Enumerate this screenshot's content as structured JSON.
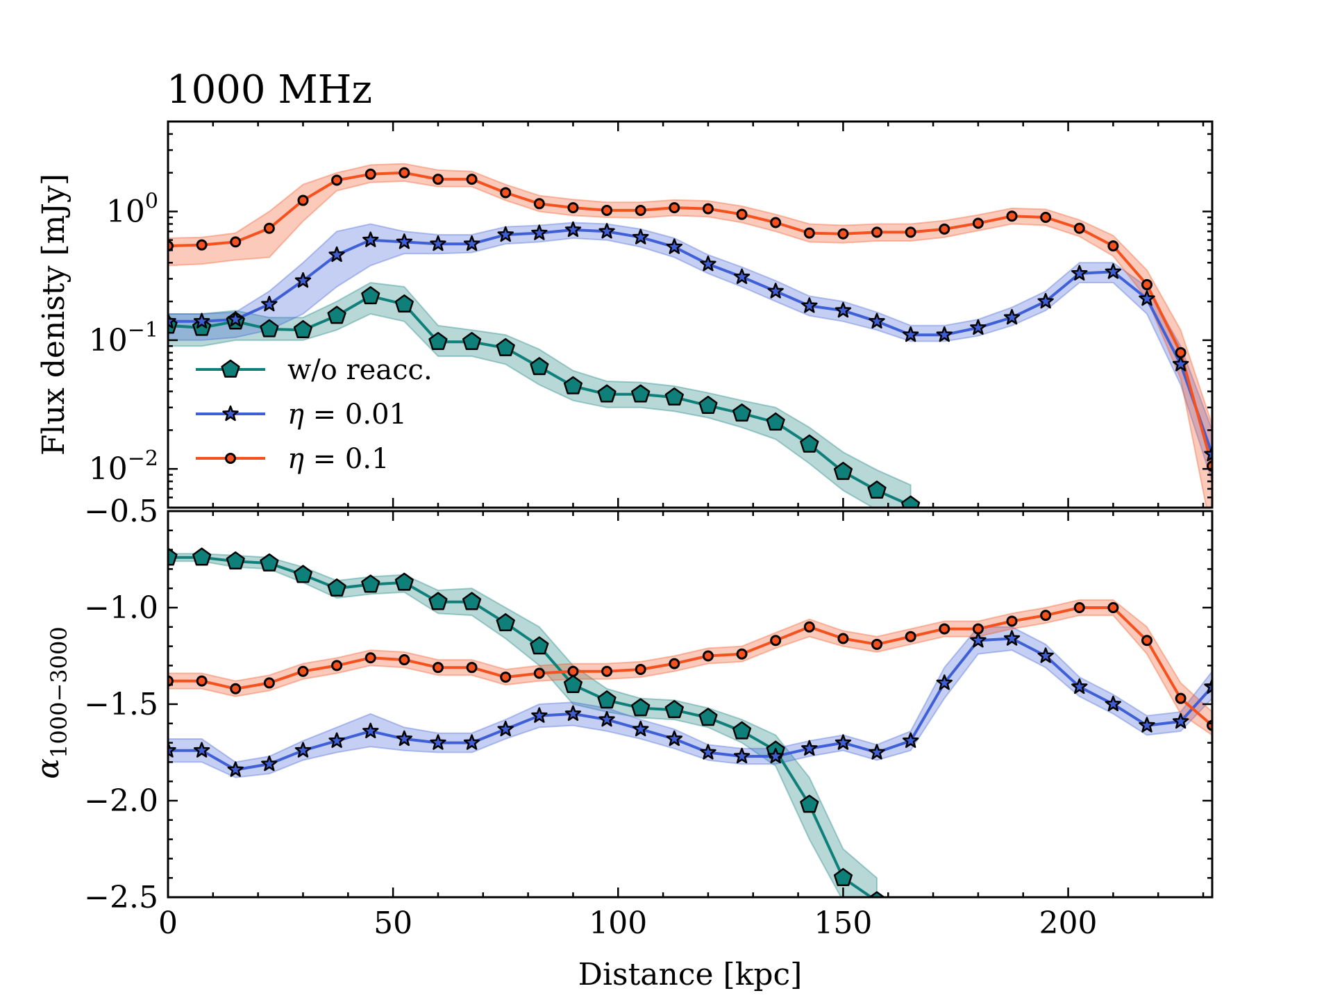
{
  "chart_data": [
    {
      "type": "line",
      "panel": "top",
      "title": "1000 MHz",
      "ylabel": "Flux denisty [mJy]",
      "yscale": "log",
      "ylim": [
        0.005,
        5
      ],
      "xlim": [
        0,
        232
      ],
      "yticks": [
        {
          "value": 1,
          "base": "10",
          "exp": "0"
        },
        {
          "value": 0.1,
          "base": "10",
          "exp": "−1"
        },
        {
          "value": 0.01,
          "base": "10",
          "exp": "−2"
        }
      ],
      "legend": {
        "placement": "lower-left",
        "entries": [
          {
            "key": "w/o",
            "label_prefix": "w/o reacc.",
            "label_suffix": ""
          },
          {
            "key": "eta001",
            "label_prefix": "η",
            "label_suffix": " = 0.01"
          },
          {
            "key": "eta01",
            "label_prefix": "η",
            "label_suffix": " = 0.1"
          }
        ]
      },
      "x": [
        0,
        7.5,
        15,
        22.5,
        30,
        37.5,
        45,
        52.5,
        60,
        67.5,
        75,
        82.5,
        90,
        97.5,
        105,
        112.5,
        120,
        127.5,
        135,
        142.5,
        150,
        157.5,
        165,
        172.5,
        180,
        187.5,
        195,
        202.5,
        210,
        217.5,
        225,
        232
      ],
      "series": [
        {
          "key": "w/o",
          "name": "w/o reacc.",
          "color": "#0f7f7a",
          "marker": "pentagon",
          "values": [
            0.13,
            0.125,
            0.14,
            0.122,
            0.12,
            0.155,
            0.22,
            0.19,
            0.097,
            0.097,
            0.087,
            0.062,
            0.044,
            0.038,
            0.038,
            0.036,
            0.031,
            0.027,
            0.023,
            0.0155,
            0.0095,
            0.0068,
            0.0052,
            null,
            null,
            null,
            null,
            null,
            null,
            null,
            null,
            null
          ],
          "lower": [
            0.09,
            0.09,
            0.1,
            0.1,
            0.1,
            0.12,
            0.16,
            0.14,
            0.075,
            0.075,
            0.065,
            0.045,
            0.034,
            0.03,
            0.03,
            0.028,
            0.025,
            0.021,
            0.017,
            0.011,
            0.0068,
            0.0048,
            0.0036,
            null,
            null,
            null,
            null,
            null,
            null,
            null,
            null,
            null
          ],
          "upper": [
            0.16,
            0.16,
            0.17,
            0.15,
            0.15,
            0.2,
            0.28,
            0.26,
            0.13,
            0.12,
            0.11,
            0.085,
            0.058,
            0.048,
            0.047,
            0.044,
            0.039,
            0.034,
            0.03,
            0.021,
            0.0135,
            0.0098,
            0.0075,
            null,
            null,
            null,
            null,
            null,
            null,
            null,
            null,
            null
          ]
        },
        {
          "key": "eta001",
          "name": "η = 0.01",
          "color": "#3e5fd6",
          "marker": "star",
          "values": [
            0.14,
            0.14,
            0.145,
            0.19,
            0.29,
            0.46,
            0.6,
            0.58,
            0.56,
            0.56,
            0.66,
            0.68,
            0.72,
            0.7,
            0.63,
            0.53,
            0.39,
            0.31,
            0.24,
            0.185,
            0.17,
            0.14,
            0.11,
            0.11,
            0.125,
            0.15,
            0.2,
            0.33,
            0.34,
            0.21,
            0.065,
            0.013
          ],
          "lower": [
            0.1,
            0.1,
            0.105,
            0.12,
            0.16,
            0.26,
            0.38,
            0.47,
            0.47,
            0.48,
            0.56,
            0.58,
            0.62,
            0.6,
            0.53,
            0.44,
            0.33,
            0.26,
            0.2,
            0.155,
            0.14,
            0.12,
            0.098,
            0.098,
            0.108,
            0.13,
            0.17,
            0.28,
            0.28,
            0.16,
            0.045,
            0.008
          ],
          "upper": [
            0.16,
            0.16,
            0.165,
            0.24,
            0.4,
            0.7,
            0.8,
            0.7,
            0.66,
            0.66,
            0.76,
            0.78,
            0.82,
            0.8,
            0.73,
            0.62,
            0.46,
            0.37,
            0.29,
            0.22,
            0.2,
            0.165,
            0.13,
            0.13,
            0.145,
            0.18,
            0.24,
            0.4,
            0.4,
            0.26,
            0.09,
            0.02
          ]
        },
        {
          "key": "eta01",
          "name": "η = 0.1",
          "color": "#f4511e",
          "marker": "circle",
          "values": [
            0.54,
            0.55,
            0.58,
            0.74,
            1.22,
            1.75,
            1.95,
            2.0,
            1.78,
            1.78,
            1.4,
            1.15,
            1.07,
            1.02,
            1.02,
            1.07,
            1.05,
            0.95,
            0.82,
            0.68,
            0.67,
            0.69,
            0.69,
            0.73,
            0.81,
            0.92,
            0.9,
            0.74,
            0.54,
            0.27,
            0.08,
            0.0105
          ],
          "lower": [
            0.38,
            0.39,
            0.42,
            0.44,
            0.84,
            1.45,
            1.68,
            1.72,
            1.56,
            1.56,
            1.22,
            1.0,
            0.93,
            0.9,
            0.89,
            0.93,
            0.91,
            0.82,
            0.7,
            0.58,
            0.57,
            0.59,
            0.59,
            0.63,
            0.71,
            0.8,
            0.78,
            0.64,
            0.45,
            0.21,
            0.05,
            0.003
          ],
          "upper": [
            0.62,
            0.63,
            0.68,
            1.0,
            1.62,
            2.0,
            2.3,
            2.35,
            2.1,
            2.05,
            1.62,
            1.33,
            1.24,
            1.18,
            1.18,
            1.23,
            1.21,
            1.1,
            0.95,
            0.8,
            0.78,
            0.8,
            0.8,
            0.85,
            0.94,
            1.06,
            1.04,
            0.86,
            0.65,
            0.35,
            0.12,
            0.022
          ]
        }
      ]
    },
    {
      "type": "line",
      "panel": "bottom",
      "xlabel": "Distance [kpc]",
      "ylabel_main": "α",
      "ylabel_sub": "1000−3000",
      "yscale": "linear",
      "ylim": [
        -2.5,
        -0.5
      ],
      "xlim": [
        0,
        232
      ],
      "xticks": [
        0,
        50,
        100,
        150,
        200
      ],
      "xtick_labels": [
        "0",
        "50",
        "100",
        "150",
        "200"
      ],
      "yticks": [
        -0.5,
        -1.0,
        -1.5,
        -2.0,
        -2.5
      ],
      "ytick_labels": [
        "−0.5",
        "−1.0",
        "−1.5",
        "−2.0",
        "−2.5"
      ],
      "x": [
        0,
        7.5,
        15,
        22.5,
        30,
        37.5,
        45,
        52.5,
        60,
        67.5,
        75,
        82.5,
        90,
        97.5,
        105,
        112.5,
        120,
        127.5,
        135,
        142.5,
        150,
        157.5,
        165,
        172.5,
        180,
        187.5,
        195,
        202.5,
        210,
        217.5,
        225,
        232
      ],
      "series": [
        {
          "key": "w/o",
          "name": "w/o reacc.",
          "color": "#0f7f7a",
          "marker": "pentagon",
          "values": [
            -0.74,
            -0.74,
            -0.76,
            -0.77,
            -0.83,
            -0.9,
            -0.88,
            -0.87,
            -0.97,
            -0.97,
            -1.08,
            -1.2,
            -1.4,
            -1.48,
            -1.52,
            -1.53,
            -1.57,
            -1.64,
            -1.74,
            -2.02,
            -2.4,
            -2.52,
            null,
            null,
            null,
            null,
            null,
            null,
            null,
            null,
            null,
            null
          ],
          "lower": [
            -0.76,
            -0.76,
            -0.79,
            -0.8,
            -0.87,
            -0.95,
            -0.93,
            -0.92,
            -1.03,
            -1.04,
            -1.16,
            -1.3,
            -1.5,
            -1.54,
            -1.57,
            -1.58,
            -1.62,
            -1.7,
            -1.82,
            -2.2,
            -2.52,
            -2.6,
            null,
            null,
            null,
            null,
            null,
            null,
            null,
            null,
            null,
            null
          ],
          "upper": [
            -0.72,
            -0.72,
            -0.73,
            -0.74,
            -0.79,
            -0.86,
            -0.84,
            -0.83,
            -0.91,
            -0.9,
            -1.0,
            -1.1,
            -1.3,
            -1.42,
            -1.47,
            -1.48,
            -1.52,
            -1.58,
            -1.66,
            -1.88,
            -2.25,
            -2.4,
            null,
            null,
            null,
            null,
            null,
            null,
            null,
            null,
            null,
            null
          ]
        },
        {
          "key": "eta001",
          "name": "η = 0.01",
          "color": "#3e5fd6",
          "marker": "star",
          "values": [
            -1.74,
            -1.74,
            -1.84,
            -1.81,
            -1.74,
            -1.69,
            -1.64,
            -1.68,
            -1.7,
            -1.7,
            -1.63,
            -1.56,
            -1.55,
            -1.58,
            -1.63,
            -1.68,
            -1.75,
            -1.77,
            -1.77,
            -1.73,
            -1.7,
            -1.75,
            -1.69,
            -1.39,
            -1.17,
            -1.16,
            -1.25,
            -1.41,
            -1.5,
            -1.61,
            -1.59,
            -1.41
          ],
          "lower": [
            -1.8,
            -1.8,
            -1.88,
            -1.86,
            -1.79,
            -1.75,
            -1.72,
            -1.74,
            -1.75,
            -1.75,
            -1.68,
            -1.62,
            -1.61,
            -1.64,
            -1.68,
            -1.73,
            -1.79,
            -1.81,
            -1.81,
            -1.77,
            -1.74,
            -1.79,
            -1.74,
            -1.47,
            -1.24,
            -1.22,
            -1.31,
            -1.46,
            -1.55,
            -1.66,
            -1.64,
            -1.47
          ],
          "upper": [
            -1.68,
            -1.68,
            -1.8,
            -1.77,
            -1.69,
            -1.62,
            -1.55,
            -1.62,
            -1.65,
            -1.65,
            -1.58,
            -1.5,
            -1.49,
            -1.52,
            -1.58,
            -1.63,
            -1.71,
            -1.73,
            -1.73,
            -1.69,
            -1.66,
            -1.71,
            -1.64,
            -1.31,
            -1.1,
            -1.1,
            -1.19,
            -1.36,
            -1.45,
            -1.56,
            -1.54,
            -1.33
          ]
        },
        {
          "key": "eta01",
          "name": "η = 0.1",
          "color": "#f4511e",
          "marker": "circle",
          "values": [
            -1.38,
            -1.38,
            -1.42,
            -1.39,
            -1.33,
            -1.3,
            -1.26,
            -1.27,
            -1.31,
            -1.31,
            -1.36,
            -1.34,
            -1.33,
            -1.33,
            -1.32,
            -1.29,
            -1.25,
            -1.24,
            -1.17,
            -1.1,
            -1.16,
            -1.19,
            -1.15,
            -1.11,
            -1.11,
            -1.07,
            -1.04,
            -1.0,
            -1.0,
            -1.17,
            -1.47,
            -1.61
          ],
          "lower": [
            -1.42,
            -1.42,
            -1.46,
            -1.43,
            -1.37,
            -1.34,
            -1.3,
            -1.31,
            -1.35,
            -1.35,
            -1.4,
            -1.38,
            -1.37,
            -1.37,
            -1.36,
            -1.33,
            -1.29,
            -1.28,
            -1.21,
            -1.15,
            -1.2,
            -1.23,
            -1.19,
            -1.15,
            -1.15,
            -1.11,
            -1.08,
            -1.04,
            -1.04,
            -1.24,
            -1.55,
            -1.66
          ],
          "upper": [
            -1.34,
            -1.34,
            -1.38,
            -1.35,
            -1.29,
            -1.26,
            -1.22,
            -1.23,
            -1.27,
            -1.27,
            -1.32,
            -1.3,
            -1.29,
            -1.29,
            -1.28,
            -1.25,
            -1.21,
            -1.2,
            -1.13,
            -1.06,
            -1.12,
            -1.15,
            -1.11,
            -1.07,
            -1.07,
            -1.03,
            -1.0,
            -0.96,
            -0.96,
            -1.1,
            -1.39,
            -1.54
          ]
        }
      ]
    }
  ]
}
